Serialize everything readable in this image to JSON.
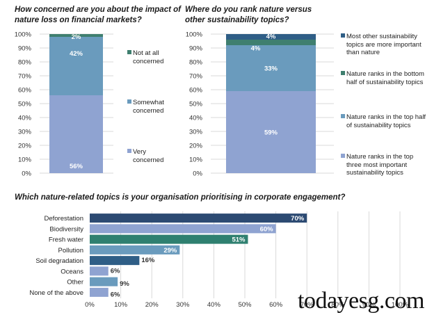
{
  "chart_data": [
    {
      "type": "bar",
      "stacked": true,
      "orientation": "vertical",
      "title": "How concerned are you about the impact of nature loss on financial markets?",
      "ylim": [
        0,
        100
      ],
      "yticks": [
        "0%",
        "10%",
        "20%",
        "30%",
        "40%",
        "50%",
        "60%",
        "70%",
        "80%",
        "90%",
        "100%"
      ],
      "categories": [
        ""
      ],
      "legend_position": "right",
      "series": [
        {
          "name": "Very concerned",
          "values": [
            56
          ],
          "label": "56%",
          "color": "#8fa3d1",
          "label_color": "#ffffff"
        },
        {
          "name": "Somewhat concerned",
          "values": [
            42
          ],
          "label": "42%",
          "color": "#6a9bbd",
          "label_color": "#ffffff"
        },
        {
          "name": "Not at all concerned",
          "values": [
            2
          ],
          "label": "2%",
          "color": "#3f7f6f",
          "label_color": "#ffffff"
        }
      ],
      "legend": [
        {
          "name": "Not at all concerned",
          "lines": [
            "Not at all",
            "concerned"
          ],
          "color": "#3f7f6f"
        },
        {
          "name": "Somewhat concerned",
          "lines": [
            "Somewhat",
            "concerned"
          ],
          "color": "#6a9bbd"
        },
        {
          "name": "Very concerned",
          "lines": [
            "Very",
            "concerned"
          ],
          "color": "#8fa3d1"
        }
      ]
    },
    {
      "type": "bar",
      "stacked": true,
      "orientation": "vertical",
      "title": "Where do you rank nature versus other sustainability topics?",
      "ylim": [
        0,
        100
      ],
      "yticks": [
        "0%",
        "10%",
        "20%",
        "30%",
        "40%",
        "50%",
        "60%",
        "70%",
        "80%",
        "90%",
        "100%"
      ],
      "categories": [
        ""
      ],
      "legend_position": "right",
      "series": [
        {
          "name": "Nature ranks in the top three most important sustainability topics",
          "values": [
            59
          ],
          "label": "59%",
          "color": "#8fa3d1",
          "label_color": "#ffffff"
        },
        {
          "name": "Nature ranks in the top half of sustainability topics",
          "values": [
            33
          ],
          "label": "33%",
          "color": "#6a9bbd",
          "label_color": "#ffffff"
        },
        {
          "name": "Nature ranks in the bottom half of sustainability topics",
          "values": [
            4
          ],
          "label": "4%",
          "color": "#3f7f6f",
          "label_color": "#ffffff"
        },
        {
          "name": "Most other sustainability topics are more important than nature",
          "values": [
            4
          ],
          "label": "4%",
          "color": "#2f5e86",
          "label_color": "#ffffff"
        }
      ],
      "legend": [
        {
          "name": "Most other sustainability topics are more important than nature",
          "lines": [
            "Most other sustainability",
            "topics are more important",
            "than nature"
          ],
          "color": "#2f5e86"
        },
        {
          "name": "Nature ranks in the bottom half of sustainability topics",
          "lines": [
            "Nature ranks in the bottom",
            "half of sustainability topics"
          ],
          "color": "#3f7f6f"
        },
        {
          "name": "Nature ranks in the top half of sustainability topics",
          "lines": [
            "Nature ranks in the top half",
            "of sustainability topics"
          ],
          "color": "#6a9bbd"
        },
        {
          "name": "Nature ranks in the top three most important sustainability topics",
          "lines": [
            "Nature ranks in the top",
            "three most important",
            "sustainability topics"
          ],
          "color": "#8fa3d1"
        }
      ]
    },
    {
      "type": "bar",
      "orientation": "horizontal",
      "title": "Which nature-related topics is your organisation prioritising in corporate engagement?",
      "xlim": [
        0,
        100
      ],
      "xticks": [
        "0%",
        "10%",
        "20%",
        "30%",
        "40%",
        "50%",
        "60%",
        "70%",
        "80%",
        "90%",
        "100%"
      ],
      "grid": true,
      "categories": [
        "Deforestation",
        "Biodiversity",
        "Fresh water",
        "Pollution",
        "Soil degradation",
        "Oceans",
        "Other",
        "None of the above"
      ],
      "values": [
        70,
        60,
        51,
        29,
        16,
        6,
        9,
        6
      ],
      "labels": [
        "70%",
        "60%",
        "51%",
        "29%",
        "16%",
        "6%",
        "9%",
        "6%"
      ],
      "colors": [
        "#2c4a72",
        "#8fa3d1",
        "#2f8070",
        "#6a9bbd",
        "#2f5e86",
        "#8fa3d1",
        "#6a9bbd",
        "#8fa3d1"
      ],
      "label_inside": [
        true,
        true,
        true,
        true,
        false,
        false,
        false,
        false
      ]
    }
  ],
  "watermark": "todayesg.com"
}
